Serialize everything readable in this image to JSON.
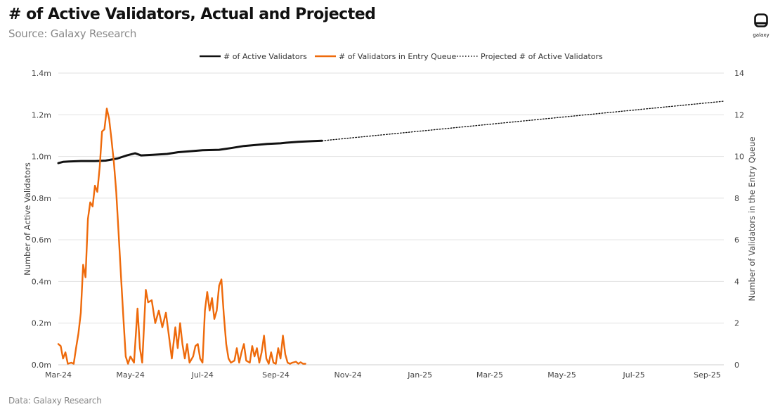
{
  "header": {
    "title": "# of Active Validators, Actual and Projected",
    "subtitle": "Source: Galaxy Research"
  },
  "footer": {
    "note": "Data: Galaxy Research"
  },
  "logo": {
    "text": "galaxy",
    "icon": "galaxy-logo-icon"
  },
  "colors": {
    "active": "#111111",
    "queue": "#ee6a0b",
    "projected": "#111111",
    "grid": "#e2e2e2",
    "axis_text": "#444444"
  },
  "chart_data": {
    "type": "line",
    "x_ticks": [
      "Mar-24",
      "May-24",
      "Jul-24",
      "Sep-24",
      "Nov-24",
      "Jan-25",
      "Mar-25",
      "May-25",
      "Jul-25",
      "Sep-25"
    ],
    "xlim": [
      "2024-03-01",
      "2025-09-15"
    ],
    "y_left": {
      "label": "Number of Active Validators",
      "ticks": [
        "0.0m",
        "0.2m",
        "0.4m",
        "0.6m",
        "0.8m",
        "1.0m",
        "1.2m",
        "1.4m"
      ],
      "lim": [
        0,
        1.4
      ],
      "unit": "m"
    },
    "y_right": {
      "label": "Number of Validators in the Entry Queue",
      "ticks": [
        "0",
        "2",
        "4",
        "6",
        "8",
        "10",
        "12",
        "14"
      ],
      "lim": [
        0,
        14
      ]
    },
    "grid": true,
    "legend_position": "top-center",
    "series": [
      {
        "name": "# of Active Validators",
        "axis": "left",
        "style": "solid",
        "points": [
          [
            "2024-03-01",
            0.968
          ],
          [
            "2024-03-05",
            0.974
          ],
          [
            "2024-03-10",
            0.976
          ],
          [
            "2024-03-20",
            0.978
          ],
          [
            "2024-04-01",
            0.978
          ],
          [
            "2024-04-10",
            0.98
          ],
          [
            "2024-04-20",
            0.99
          ],
          [
            "2024-04-28",
            1.005
          ],
          [
            "2024-05-05",
            1.015
          ],
          [
            "2024-05-10",
            1.005
          ],
          [
            "2024-05-20",
            1.008
          ],
          [
            "2024-06-01",
            1.012
          ],
          [
            "2024-06-10",
            1.02
          ],
          [
            "2024-06-20",
            1.025
          ],
          [
            "2024-07-01",
            1.03
          ],
          [
            "2024-07-15",
            1.032
          ],
          [
            "2024-07-25",
            1.04
          ],
          [
            "2024-08-05",
            1.05
          ],
          [
            "2024-08-15",
            1.055
          ],
          [
            "2024-08-25",
            1.06
          ],
          [
            "2024-09-05",
            1.063
          ],
          [
            "2024-09-10",
            1.066
          ],
          [
            "2024-09-20",
            1.07
          ],
          [
            "2024-10-01",
            1.073
          ],
          [
            "2024-10-10",
            1.075
          ]
        ]
      },
      {
        "name": "# of Validators in Entry Queue",
        "axis": "right",
        "style": "solid",
        "points": [
          [
            "2024-03-01",
            1.0
          ],
          [
            "2024-03-03",
            0.9
          ],
          [
            "2024-03-05",
            0.3
          ],
          [
            "2024-03-07",
            0.6
          ],
          [
            "2024-03-09",
            0.05
          ],
          [
            "2024-03-12",
            0.1
          ],
          [
            "2024-03-14",
            0.05
          ],
          [
            "2024-03-16",
            0.8
          ],
          [
            "2024-03-18",
            1.5
          ],
          [
            "2024-03-20",
            2.5
          ],
          [
            "2024-03-22",
            4.8
          ],
          [
            "2024-03-24",
            4.2
          ],
          [
            "2024-03-26",
            7.0
          ],
          [
            "2024-03-28",
            7.8
          ],
          [
            "2024-03-30",
            7.6
          ],
          [
            "2024-04-01",
            8.6
          ],
          [
            "2024-04-03",
            8.3
          ],
          [
            "2024-04-05",
            9.5
          ],
          [
            "2024-04-07",
            11.2
          ],
          [
            "2024-04-09",
            11.3
          ],
          [
            "2024-04-11",
            12.3
          ],
          [
            "2024-04-13",
            11.8
          ],
          [
            "2024-04-15",
            10.8
          ],
          [
            "2024-04-17",
            9.7
          ],
          [
            "2024-04-19",
            8.3
          ],
          [
            "2024-04-21",
            6.3
          ],
          [
            "2024-04-23",
            4.3
          ],
          [
            "2024-04-25",
            2.3
          ],
          [
            "2024-04-27",
            0.4
          ],
          [
            "2024-04-29",
            0.05
          ],
          [
            "2024-05-01",
            0.4
          ],
          [
            "2024-05-04",
            0.1
          ],
          [
            "2024-05-07",
            2.7
          ],
          [
            "2024-05-09",
            0.8
          ],
          [
            "2024-05-11",
            0.1
          ],
          [
            "2024-05-14",
            3.6
          ],
          [
            "2024-05-16",
            3.0
          ],
          [
            "2024-05-19",
            3.1
          ],
          [
            "2024-05-22",
            2.0
          ],
          [
            "2024-05-25",
            2.6
          ],
          [
            "2024-05-28",
            1.8
          ],
          [
            "2024-05-31",
            2.5
          ],
          [
            "2024-06-03",
            1.2
          ],
          [
            "2024-06-05",
            0.3
          ],
          [
            "2024-06-08",
            1.8
          ],
          [
            "2024-06-10",
            0.8
          ],
          [
            "2024-06-12",
            2.0
          ],
          [
            "2024-06-14",
            1.0
          ],
          [
            "2024-06-16",
            0.3
          ],
          [
            "2024-06-18",
            1.0
          ],
          [
            "2024-06-20",
            0.1
          ],
          [
            "2024-06-23",
            0.4
          ],
          [
            "2024-06-25",
            0.9
          ],
          [
            "2024-06-27",
            1.0
          ],
          [
            "2024-06-29",
            0.3
          ],
          [
            "2024-07-01",
            0.1
          ],
          [
            "2024-07-03",
            2.6
          ],
          [
            "2024-07-05",
            3.5
          ],
          [
            "2024-07-07",
            2.6
          ],
          [
            "2024-07-09",
            3.2
          ],
          [
            "2024-07-11",
            2.2
          ],
          [
            "2024-07-13",
            2.6
          ],
          [
            "2024-07-15",
            3.8
          ],
          [
            "2024-07-17",
            4.1
          ],
          [
            "2024-07-19",
            2.4
          ],
          [
            "2024-07-21",
            1.0
          ],
          [
            "2024-07-23",
            0.3
          ],
          [
            "2024-07-25",
            0.1
          ],
          [
            "2024-07-28",
            0.2
          ],
          [
            "2024-07-30",
            0.8
          ],
          [
            "2024-08-01",
            0.1
          ],
          [
            "2024-08-03",
            0.6
          ],
          [
            "2024-08-05",
            1.0
          ],
          [
            "2024-08-07",
            0.2
          ],
          [
            "2024-08-10",
            0.1
          ],
          [
            "2024-08-12",
            0.9
          ],
          [
            "2024-08-14",
            0.4
          ],
          [
            "2024-08-16",
            0.8
          ],
          [
            "2024-08-18",
            0.1
          ],
          [
            "2024-08-20",
            0.6
          ],
          [
            "2024-08-22",
            1.4
          ],
          [
            "2024-08-24",
            0.3
          ],
          [
            "2024-08-26",
            0.05
          ],
          [
            "2024-08-28",
            0.6
          ],
          [
            "2024-08-30",
            0.1
          ],
          [
            "2024-09-01",
            0.05
          ],
          [
            "2024-09-03",
            0.8
          ],
          [
            "2024-09-05",
            0.3
          ],
          [
            "2024-09-07",
            1.4
          ],
          [
            "2024-09-09",
            0.5
          ],
          [
            "2024-09-11",
            0.1
          ],
          [
            "2024-09-13",
            0.05
          ],
          [
            "2024-09-15",
            0.1
          ],
          [
            "2024-09-18",
            0.15
          ],
          [
            "2024-09-20",
            0.05
          ],
          [
            "2024-09-22",
            0.12
          ],
          [
            "2024-09-24",
            0.05
          ],
          [
            "2024-09-26",
            0.05
          ]
        ]
      },
      {
        "name": "Projected # of Active Validators",
        "axis": "left",
        "style": "dotted",
        "points": [
          [
            "2024-10-10",
            1.075
          ],
          [
            "2025-09-15",
            1.265
          ]
        ]
      }
    ]
  }
}
